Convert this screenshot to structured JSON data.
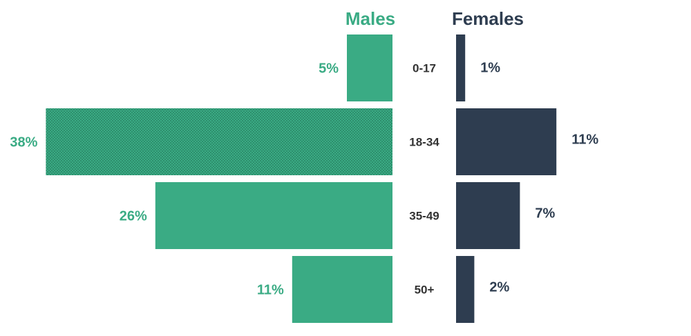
{
  "chart_data": {
    "type": "bar",
    "orientation": "horizontal",
    "layout": "butterfly",
    "categories": [
      "0-17",
      "18-34",
      "35-49",
      "50+"
    ],
    "series": [
      {
        "name": "Males",
        "values": [
          5,
          38,
          26,
          11
        ],
        "labels": [
          "5%",
          "38%",
          "26%",
          "11%"
        ],
        "color": "#3aab84",
        "highlight_index": 1,
        "highlight_style": "dotted-pattern"
      },
      {
        "name": "Females",
        "values": [
          1,
          11,
          7,
          2
        ],
        "labels": [
          "1%",
          "11%",
          "7%",
          "2%"
        ],
        "color": "#2e3d50"
      }
    ],
    "unit": "%",
    "grid": false,
    "legend_placement": "top-center"
  },
  "colors": {
    "males": "#3aab84",
    "females": "#2e3d50",
    "category_text": "#333333"
  }
}
